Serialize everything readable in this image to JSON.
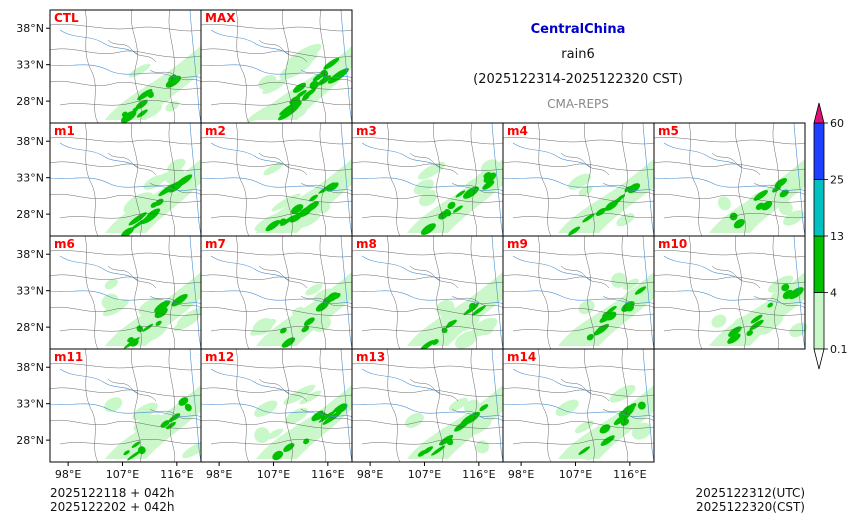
{
  "header": {
    "region": "CentralChina",
    "variable": "rain6",
    "period": "(2025122314-2025122320 CST)",
    "model": "CMA-REPS"
  },
  "footer": {
    "init_utc": "2025122118  +  042h",
    "init_cst": "2025122202  +  042h",
    "valid_utc": "2025122312(UTC)",
    "valid_cst": "2025122320(CST)"
  },
  "colors": {
    "title": "#0000cc",
    "member_label": "#ff0000",
    "subtle": "#888888",
    "river": "#4a8fd0",
    "border": "#555555"
  },
  "chart_data": {
    "type": "heatmap",
    "panels": [
      {
        "label": "CTL",
        "intensity": 0.9,
        "seed": 3
      },
      {
        "label": "MAX",
        "intensity": 1.6,
        "seed": 7
      },
      {
        "label": "m1",
        "intensity": 1.3,
        "seed": 11
      },
      {
        "label": "m2",
        "intensity": 1.1,
        "seed": 13
      },
      {
        "label": "m3",
        "intensity": 1.0,
        "seed": 17
      },
      {
        "label": "m4",
        "intensity": 0.7,
        "seed": 19
      },
      {
        "label": "m5",
        "intensity": 0.8,
        "seed": 23
      },
      {
        "label": "m6",
        "intensity": 1.0,
        "seed": 29
      },
      {
        "label": "m7",
        "intensity": 0.9,
        "seed": 31
      },
      {
        "label": "m8",
        "intensity": 0.9,
        "seed": 37
      },
      {
        "label": "m9",
        "intensity": 1.0,
        "seed": 41
      },
      {
        "label": "m10",
        "intensity": 0.9,
        "seed": 43
      },
      {
        "label": "m11",
        "intensity": 1.0,
        "seed": 47
      },
      {
        "label": "m12",
        "intensity": 1.3,
        "seed": 53
      },
      {
        "label": "m13",
        "intensity": 1.0,
        "seed": 59
      },
      {
        "label": "m14",
        "intensity": 1.0,
        "seed": 61
      }
    ],
    "layout": [
      [
        "CTL",
        "MAX"
      ],
      [
        "m1",
        "m2",
        "m3",
        "m4",
        "m5"
      ],
      [
        "m6",
        "m7",
        "m8",
        "m9",
        "m10"
      ],
      [
        "m11",
        "m12",
        "m13",
        "m14"
      ]
    ],
    "lat_ticks": [
      "38°N",
      "33°N",
      "28°N"
    ],
    "lat_values": [
      38,
      33,
      28
    ],
    "lon_ticks": [
      "98°E",
      "107°E",
      "116°E"
    ],
    "lon_values": [
      98,
      107,
      116
    ],
    "lat_range": [
      25,
      40.5
    ],
    "lon_range": [
      95,
      120
    ],
    "colorbar": {
      "levels": [
        "0.1",
        "4",
        "13",
        "25",
        "60"
      ],
      "colors": [
        "#c8f7c8",
        "#00c000",
        "#00c0c0",
        "#2040ff"
      ],
      "under_color": "#ffffff",
      "over_color": "#e0107a"
    }
  }
}
